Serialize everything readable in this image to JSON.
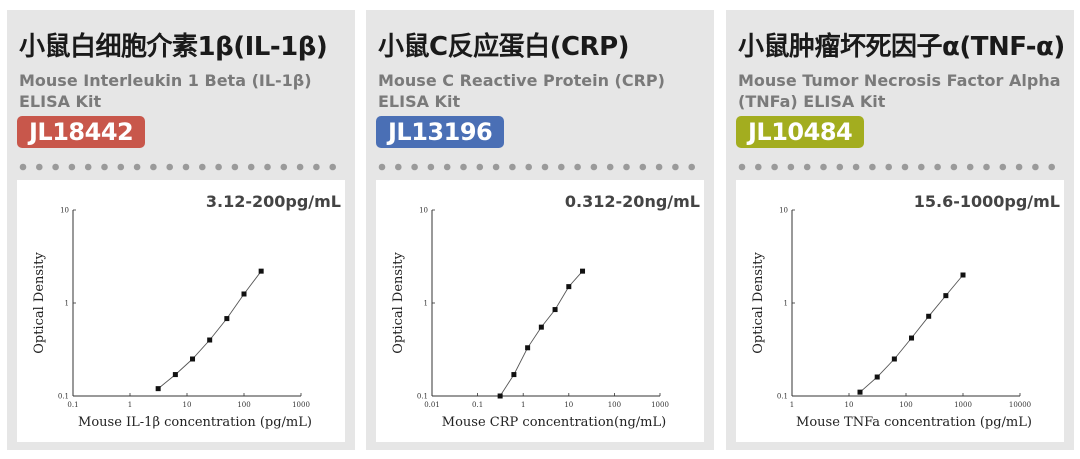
{
  "cards": [
    {
      "title": "小鼠白细胞介素1β(IL-1β)",
      "subtitle": "Mouse Interleukin 1 Beta (IL-1β) ELISA Kit",
      "badge": "JL18442",
      "badge_color": "#c8574b",
      "range": "3.12-200pg/mL"
    },
    {
      "title": "小鼠C反应蛋白(CRP)",
      "subtitle": "Mouse C Reactive Protein (CRP) ELISA Kit",
      "badge": "JL13196",
      "badge_color": "#4a6fb5",
      "range": "0.312-20ng/mL"
    },
    {
      "title": "小鼠肿瘤坏死因子α(TNF-α)",
      "subtitle": "Mouse Tumor Necrosis Factor Alpha (TNFa) ELISA Kit",
      "badge": "JL10484",
      "badge_color": "#a3ad1f",
      "range": "15.6-1000pg/mL"
    }
  ],
  "chart_data": [
    {
      "type": "scatter",
      "xscale": "log",
      "yscale": "log",
      "xlim": [
        0.1,
        1000
      ],
      "ylim": [
        0.1,
        10
      ],
      "xticks": [
        "0.1",
        "1",
        "10",
        "100",
        "1000"
      ],
      "yticks": [
        "0.1",
        "1",
        "10"
      ],
      "xlabel": "Mouse IL-1β concentration (pg/mL)",
      "ylabel": "Optical Density",
      "x": [
        3.12,
        6.25,
        12.5,
        25,
        50,
        100,
        200
      ],
      "y": [
        0.12,
        0.17,
        0.25,
        0.4,
        0.68,
        1.25,
        2.2
      ]
    },
    {
      "type": "scatter",
      "xscale": "log",
      "yscale": "log",
      "xlim": [
        0.01,
        1000
      ],
      "ylim": [
        0.1,
        10
      ],
      "xticks": [
        "0.01",
        "0.1",
        "1",
        "10",
        "100",
        "1000"
      ],
      "yticks": [
        "0.1",
        "1",
        "10"
      ],
      "xlabel": "Mouse CRP concentration(ng/mL)",
      "ylabel": "Optical Density",
      "x": [
        0.312,
        0.625,
        1.25,
        2.5,
        5,
        10,
        20
      ],
      "y": [
        0.1,
        0.17,
        0.33,
        0.55,
        0.85,
        1.5,
        2.2
      ]
    },
    {
      "type": "scatter",
      "xscale": "log",
      "yscale": "log",
      "xlim": [
        1,
        10000
      ],
      "ylim": [
        0.1,
        10
      ],
      "xticks": [
        "1",
        "10",
        "100",
        "1000",
        "10000"
      ],
      "yticks": [
        "0.1",
        "1",
        "10"
      ],
      "xlabel": "Mouse TNFa concentration (pg/mL)",
      "ylabel": "Optical Density",
      "x": [
        15.6,
        31.25,
        62.5,
        125,
        250,
        500,
        1000
      ],
      "y": [
        0.11,
        0.16,
        0.25,
        0.42,
        0.72,
        1.2,
        2.0
      ]
    }
  ]
}
